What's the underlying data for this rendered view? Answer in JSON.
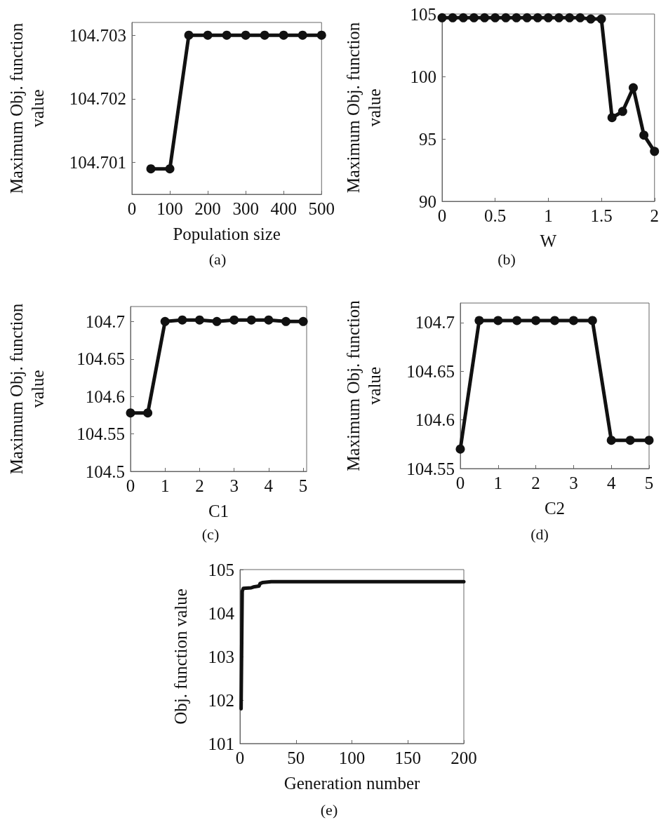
{
  "chart_data": [
    {
      "type": "line",
      "xlabel": "Population size",
      "ylabel": "Maximum Obj. function value",
      "annotations": [
        "(a)"
      ],
      "x": [
        50,
        100,
        150,
        200,
        250,
        300,
        350,
        400,
        450,
        500
      ],
      "series": [
        {
          "color": "#111111",
          "values": [
            104.7009,
            104.7009,
            104.703,
            104.703,
            104.703,
            104.703,
            104.703,
            104.703,
            104.703,
            104.703
          ]
        }
      ],
      "xlim": [
        0,
        500
      ],
      "xticks": [
        0,
        100,
        200,
        300,
        400,
        500
      ],
      "ylim": [
        104.7005,
        104.7032
      ],
      "yticks": [
        104.701,
        104.702,
        104.703
      ],
      "grid": false,
      "marker": "circle",
      "line_style": "solid"
    },
    {
      "type": "line",
      "xlabel": "W",
      "ylabel": "Maximum Obj. function value",
      "annotations": [
        "(b)"
      ],
      "x": [
        0,
        0.1,
        0.2,
        0.3,
        0.4,
        0.5,
        0.6,
        0.7,
        0.8,
        0.9,
        1.0,
        1.1,
        1.2,
        1.3,
        1.4,
        1.5,
        1.6,
        1.7,
        1.8,
        1.9,
        2.0
      ],
      "series": [
        {
          "color": "#111111",
          "values": [
            104.7,
            104.7,
            104.7,
            104.7,
            104.7,
            104.7,
            104.7,
            104.7,
            104.7,
            104.7,
            104.7,
            104.7,
            104.7,
            104.7,
            104.6,
            104.6,
            96.7,
            97.2,
            99.1,
            95.3,
            94.0
          ]
        }
      ],
      "xlim": [
        0,
        2
      ],
      "xticks": [
        0,
        0.5,
        1,
        1.5,
        2
      ],
      "ylim": [
        90,
        105
      ],
      "yticks": [
        90,
        95,
        100,
        105
      ],
      "grid": false,
      "marker": "circle",
      "line_style": "solid"
    },
    {
      "type": "line",
      "xlabel": "C1",
      "ylabel": "Maximum Obj. function value",
      "annotations": [
        "(c)"
      ],
      "x": [
        0,
        0.5,
        1,
        1.5,
        2,
        2.5,
        3,
        3.5,
        4,
        4.5,
        5
      ],
      "series": [
        {
          "color": "#111111",
          "values": [
            104.578,
            104.578,
            104.7,
            104.702,
            104.702,
            104.7,
            104.702,
            104.702,
            104.702,
            104.7,
            104.7
          ]
        }
      ],
      "xlim": [
        0,
        5.1
      ],
      "xticks": [
        0,
        1,
        2,
        3,
        4,
        5
      ],
      "ylim": [
        104.5,
        104.72
      ],
      "yticks": [
        104.5,
        104.55,
        104.6,
        104.65,
        104.7
      ],
      "grid": false,
      "marker": "circle",
      "line_style": "solid"
    },
    {
      "type": "line",
      "xlabel": "C2",
      "ylabel": "Maximum Obj. function value",
      "annotations": [
        "(d)"
      ],
      "x": [
        0,
        0.5,
        1,
        1.5,
        2,
        2.5,
        3,
        3.5,
        4,
        4.5,
        5
      ],
      "series": [
        {
          "color": "#111111",
          "values": [
            104.57,
            104.702,
            104.702,
            104.702,
            104.702,
            104.702,
            104.702,
            104.702,
            104.579,
            104.579,
            104.579
          ]
        }
      ],
      "xlim": [
        0,
        5
      ],
      "xticks": [
        0,
        1,
        2,
        3,
        4,
        5
      ],
      "ylim": [
        104.55,
        104.72
      ],
      "yticks": [
        104.55,
        104.6,
        104.65,
        104.7
      ],
      "grid": false,
      "marker": "circle",
      "line_style": "solid"
    },
    {
      "type": "line",
      "xlabel": "Generation number",
      "ylabel": "Obj. function value",
      "annotations": [
        "(e)"
      ],
      "x": [
        1,
        2,
        3,
        10,
        12,
        17,
        18,
        20,
        28,
        200
      ],
      "series": [
        {
          "color": "#111111",
          "values": [
            101.8,
            104.5,
            104.57,
            104.58,
            104.6,
            104.62,
            104.68,
            104.7,
            104.72,
            104.72
          ]
        }
      ],
      "xlim": [
        0,
        200
      ],
      "xticks": [
        0,
        50,
        100,
        150,
        200
      ],
      "ylim": [
        101,
        105
      ],
      "yticks": [
        101,
        102,
        103,
        104,
        105
      ],
      "grid": false,
      "marker": "none",
      "line_style": "solid"
    }
  ]
}
